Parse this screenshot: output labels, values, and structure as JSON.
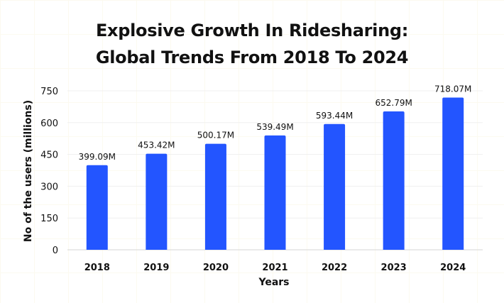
{
  "chart_data": {
    "type": "bar",
    "title_lines": [
      "Explosive Growth In Ridesharing:",
      "Global Trends From 2018 To 2024"
    ],
    "xlabel": "Years",
    "ylabel": "No of the users (millions)",
    "categories": [
      "2018",
      "2019",
      "2020",
      "2021",
      "2022",
      "2023",
      "2024"
    ],
    "values": [
      399.09,
      453.42,
      500.17,
      539.49,
      593.44,
      652.79,
      718.07
    ],
    "data_labels": [
      "399.09M",
      "453.42M",
      "500.17M",
      "539.49M",
      "593.44M",
      "652.79M",
      "718.07M"
    ],
    "yticks": [
      0,
      150,
      300,
      450,
      600,
      750
    ],
    "ylim": [
      0,
      750
    ],
    "grid": true,
    "bar_color": "#2355FF"
  }
}
